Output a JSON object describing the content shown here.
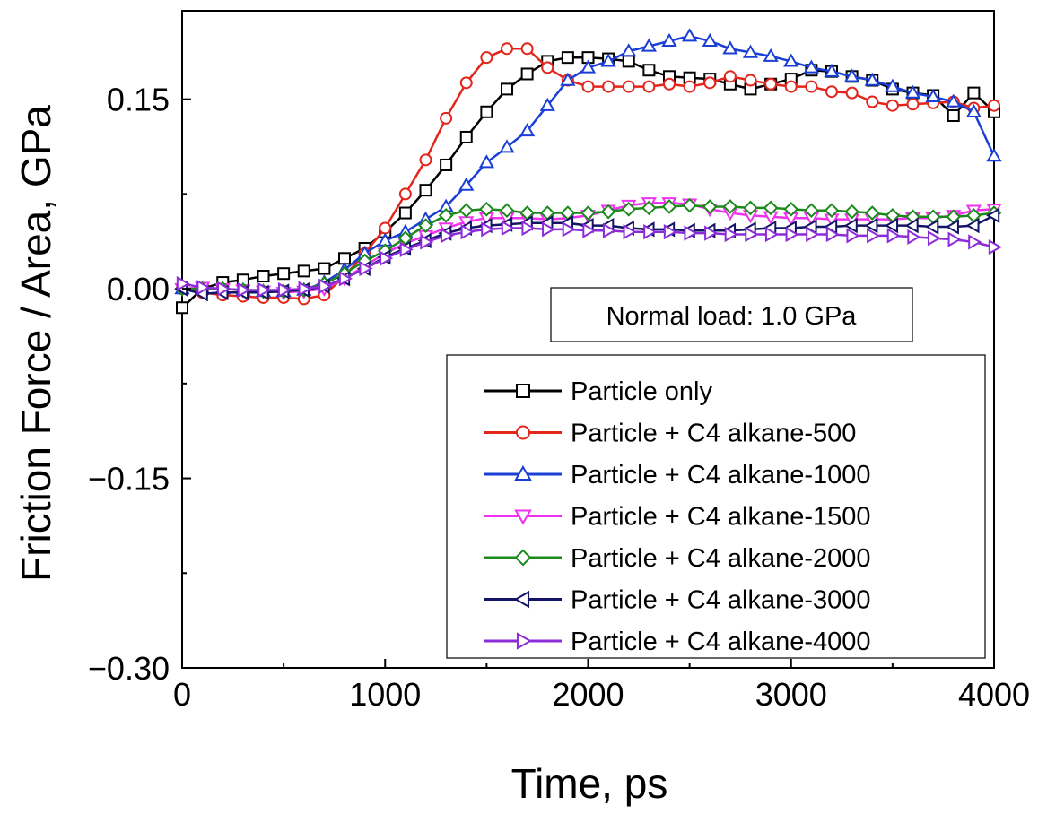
{
  "chart_data": {
    "type": "line",
    "title": "",
    "xlabel": "Time, ps",
    "ylabel": "Friction Force / Area, GPa",
    "xlim": [
      0,
      4000
    ],
    "ylim": [
      -0.3,
      0.22
    ],
    "x_ticks": [
      0,
      1000,
      2000,
      3000,
      4000
    ],
    "x_tick_labels": [
      "0",
      "1000",
      "2000",
      "3000",
      "4000"
    ],
    "y_ticks": [
      0.15,
      0.0,
      -0.15,
      -0.3
    ],
    "y_tick_labels": [
      "0.15",
      "0.00",
      "−0.15",
      "−0.30"
    ],
    "grid": false,
    "legend_position": "lower-right",
    "annotation": "Normal load: 1.0 GPa",
    "series": [
      {
        "name": "Particle only",
        "color": "#000000",
        "marker": "square",
        "x": [
          0,
          100,
          200,
          300,
          400,
          500,
          600,
          700,
          800,
          900,
          1000,
          1100,
          1200,
          1300,
          1400,
          1500,
          1600,
          1700,
          1800,
          1900,
          2000,
          2100,
          2200,
          2300,
          2400,
          2500,
          2600,
          2700,
          2800,
          2900,
          3000,
          3100,
          3200,
          3300,
          3400,
          3500,
          3600,
          3700,
          3800,
          3900,
          4000
        ],
        "y": [
          -0.015,
          0.0,
          0.005,
          0.007,
          0.01,
          0.012,
          0.014,
          0.016,
          0.024,
          0.032,
          0.045,
          0.06,
          0.078,
          0.098,
          0.12,
          0.14,
          0.158,
          0.17,
          0.18,
          0.183,
          0.183,
          0.182,
          0.18,
          0.173,
          0.168,
          0.167,
          0.166,
          0.162,
          0.158,
          0.162,
          0.166,
          0.173,
          0.172,
          0.168,
          0.165,
          0.158,
          0.155,
          0.153,
          0.137,
          0.155,
          0.14
        ]
      },
      {
        "name": "Particle + C4 alkane-500",
        "color": "#e3261c",
        "marker": "circle",
        "x": [
          0,
          100,
          200,
          300,
          400,
          500,
          600,
          700,
          800,
          900,
          1000,
          1100,
          1200,
          1300,
          1400,
          1500,
          1600,
          1700,
          1800,
          1900,
          2000,
          2100,
          2200,
          2300,
          2400,
          2500,
          2600,
          2700,
          2800,
          2900,
          3000,
          3100,
          3200,
          3300,
          3400,
          3500,
          3600,
          3700,
          3800,
          3900,
          4000
        ],
        "y": [
          0.0,
          -0.003,
          -0.005,
          -0.006,
          -0.007,
          -0.007,
          -0.008,
          -0.005,
          0.01,
          0.028,
          0.048,
          0.075,
          0.102,
          0.135,
          0.163,
          0.183,
          0.19,
          0.19,
          0.175,
          0.165,
          0.16,
          0.16,
          0.16,
          0.16,
          0.162,
          0.16,
          0.163,
          0.168,
          0.165,
          0.162,
          0.16,
          0.16,
          0.156,
          0.155,
          0.148,
          0.145,
          0.146,
          0.147,
          0.148,
          0.143,
          0.145
        ]
      },
      {
        "name": "Particle + C4 alkane-1000",
        "color": "#1a3fd6",
        "marker": "triangle-up",
        "x": [
          0,
          100,
          200,
          300,
          400,
          500,
          600,
          700,
          800,
          900,
          1000,
          1100,
          1200,
          1300,
          1400,
          1500,
          1600,
          1700,
          1800,
          1900,
          2000,
          2100,
          2200,
          2300,
          2400,
          2500,
          2600,
          2700,
          2800,
          2900,
          3000,
          3100,
          3200,
          3300,
          3400,
          3500,
          3600,
          3700,
          3800,
          3900,
          4000
        ],
        "y": [
          0.0,
          0.0,
          0.0,
          -0.001,
          -0.002,
          -0.002,
          -0.001,
          0.005,
          0.015,
          0.028,
          0.038,
          0.045,
          0.055,
          0.065,
          0.082,
          0.1,
          0.112,
          0.125,
          0.145,
          0.165,
          0.175,
          0.18,
          0.188,
          0.192,
          0.196,
          0.2,
          0.196,
          0.19,
          0.187,
          0.184,
          0.18,
          0.175,
          0.172,
          0.168,
          0.165,
          0.16,
          0.155,
          0.152,
          0.148,
          0.14,
          0.105
        ]
      },
      {
        "name": "Particle + C4 alkane-1500",
        "color": "#ee33ee",
        "marker": "triangle-down",
        "x": [
          0,
          100,
          200,
          300,
          400,
          500,
          600,
          700,
          800,
          900,
          1000,
          1100,
          1200,
          1300,
          1400,
          1500,
          1600,
          1700,
          1800,
          1900,
          2000,
          2100,
          2200,
          2300,
          2400,
          2500,
          2600,
          2700,
          2800,
          2900,
          3000,
          3100,
          3200,
          3300,
          3400,
          3500,
          3600,
          3700,
          3800,
          3900,
          4000
        ],
        "y": [
          0.0,
          0.001,
          0.0,
          -0.001,
          -0.002,
          -0.003,
          -0.002,
          0.0,
          0.008,
          0.018,
          0.028,
          0.036,
          0.042,
          0.048,
          0.053,
          0.056,
          0.056,
          0.056,
          0.055,
          0.056,
          0.058,
          0.062,
          0.066,
          0.068,
          0.068,
          0.067,
          0.063,
          0.06,
          0.058,
          0.057,
          0.056,
          0.056,
          0.055,
          0.055,
          0.055,
          0.055,
          0.056,
          0.056,
          0.058,
          0.062,
          0.063
        ]
      },
      {
        "name": "Particle + C4 alkane-2000",
        "color": "#1b8a1b",
        "marker": "diamond",
        "x": [
          0,
          100,
          200,
          300,
          400,
          500,
          600,
          700,
          800,
          900,
          1000,
          1100,
          1200,
          1300,
          1400,
          1500,
          1600,
          1700,
          1800,
          1900,
          2000,
          2100,
          2200,
          2300,
          2400,
          2500,
          2600,
          2700,
          2800,
          2900,
          3000,
          3100,
          3200,
          3300,
          3400,
          3500,
          3600,
          3700,
          3800,
          3900,
          4000
        ],
        "y": [
          0.0,
          0.0,
          0.0,
          -0.001,
          -0.002,
          -0.002,
          -0.001,
          0.004,
          0.012,
          0.022,
          0.03,
          0.04,
          0.05,
          0.058,
          0.062,
          0.063,
          0.062,
          0.06,
          0.06,
          0.06,
          0.06,
          0.061,
          0.063,
          0.064,
          0.065,
          0.066,
          0.065,
          0.065,
          0.064,
          0.064,
          0.063,
          0.062,
          0.062,
          0.061,
          0.06,
          0.058,
          0.057,
          0.057,
          0.057,
          0.058,
          0.06
        ]
      },
      {
        "name": "Particle + C4 alkane-3000",
        "color": "#141466",
        "marker": "triangle-left",
        "x": [
          0,
          100,
          200,
          300,
          400,
          500,
          600,
          700,
          800,
          900,
          1000,
          1100,
          1200,
          1300,
          1400,
          1500,
          1600,
          1700,
          1800,
          1900,
          2000,
          2100,
          2200,
          2300,
          2400,
          2500,
          2600,
          2700,
          2800,
          2900,
          3000,
          3100,
          3200,
          3300,
          3400,
          3500,
          3600,
          3700,
          3800,
          3900,
          4000
        ],
        "y": [
          0.0,
          -0.004,
          -0.003,
          -0.003,
          -0.003,
          -0.002,
          -0.001,
          0.002,
          0.008,
          0.016,
          0.025,
          0.032,
          0.038,
          0.044,
          0.048,
          0.05,
          0.051,
          0.052,
          0.052,
          0.052,
          0.05,
          0.05,
          0.048,
          0.047,
          0.047,
          0.046,
          0.046,
          0.046,
          0.047,
          0.048,
          0.048,
          0.049,
          0.049,
          0.05,
          0.05,
          0.05,
          0.05,
          0.049,
          0.049,
          0.05,
          0.058
        ]
      },
      {
        "name": "Particle + C4 alkane-4000",
        "color": "#8c2cd9",
        "marker": "triangle-right",
        "x": [
          0,
          100,
          200,
          300,
          400,
          500,
          600,
          700,
          800,
          900,
          1000,
          1100,
          1200,
          1300,
          1400,
          1500,
          1600,
          1700,
          1800,
          1900,
          2000,
          2100,
          2200,
          2300,
          2400,
          2500,
          2600,
          2700,
          2800,
          2900,
          3000,
          3100,
          3200,
          3300,
          3400,
          3500,
          3600,
          3700,
          3800,
          3900,
          4000
        ],
        "y": [
          0.004,
          0.001,
          0.0,
          -0.001,
          -0.001,
          -0.001,
          0.0,
          0.002,
          0.008,
          0.016,
          0.024,
          0.031,
          0.037,
          0.042,
          0.045,
          0.047,
          0.048,
          0.048,
          0.047,
          0.047,
          0.046,
          0.046,
          0.045,
          0.045,
          0.045,
          0.044,
          0.044,
          0.043,
          0.043,
          0.043,
          0.043,
          0.043,
          0.043,
          0.042,
          0.042,
          0.042,
          0.041,
          0.04,
          0.039,
          0.037,
          0.033
        ]
      }
    ]
  }
}
